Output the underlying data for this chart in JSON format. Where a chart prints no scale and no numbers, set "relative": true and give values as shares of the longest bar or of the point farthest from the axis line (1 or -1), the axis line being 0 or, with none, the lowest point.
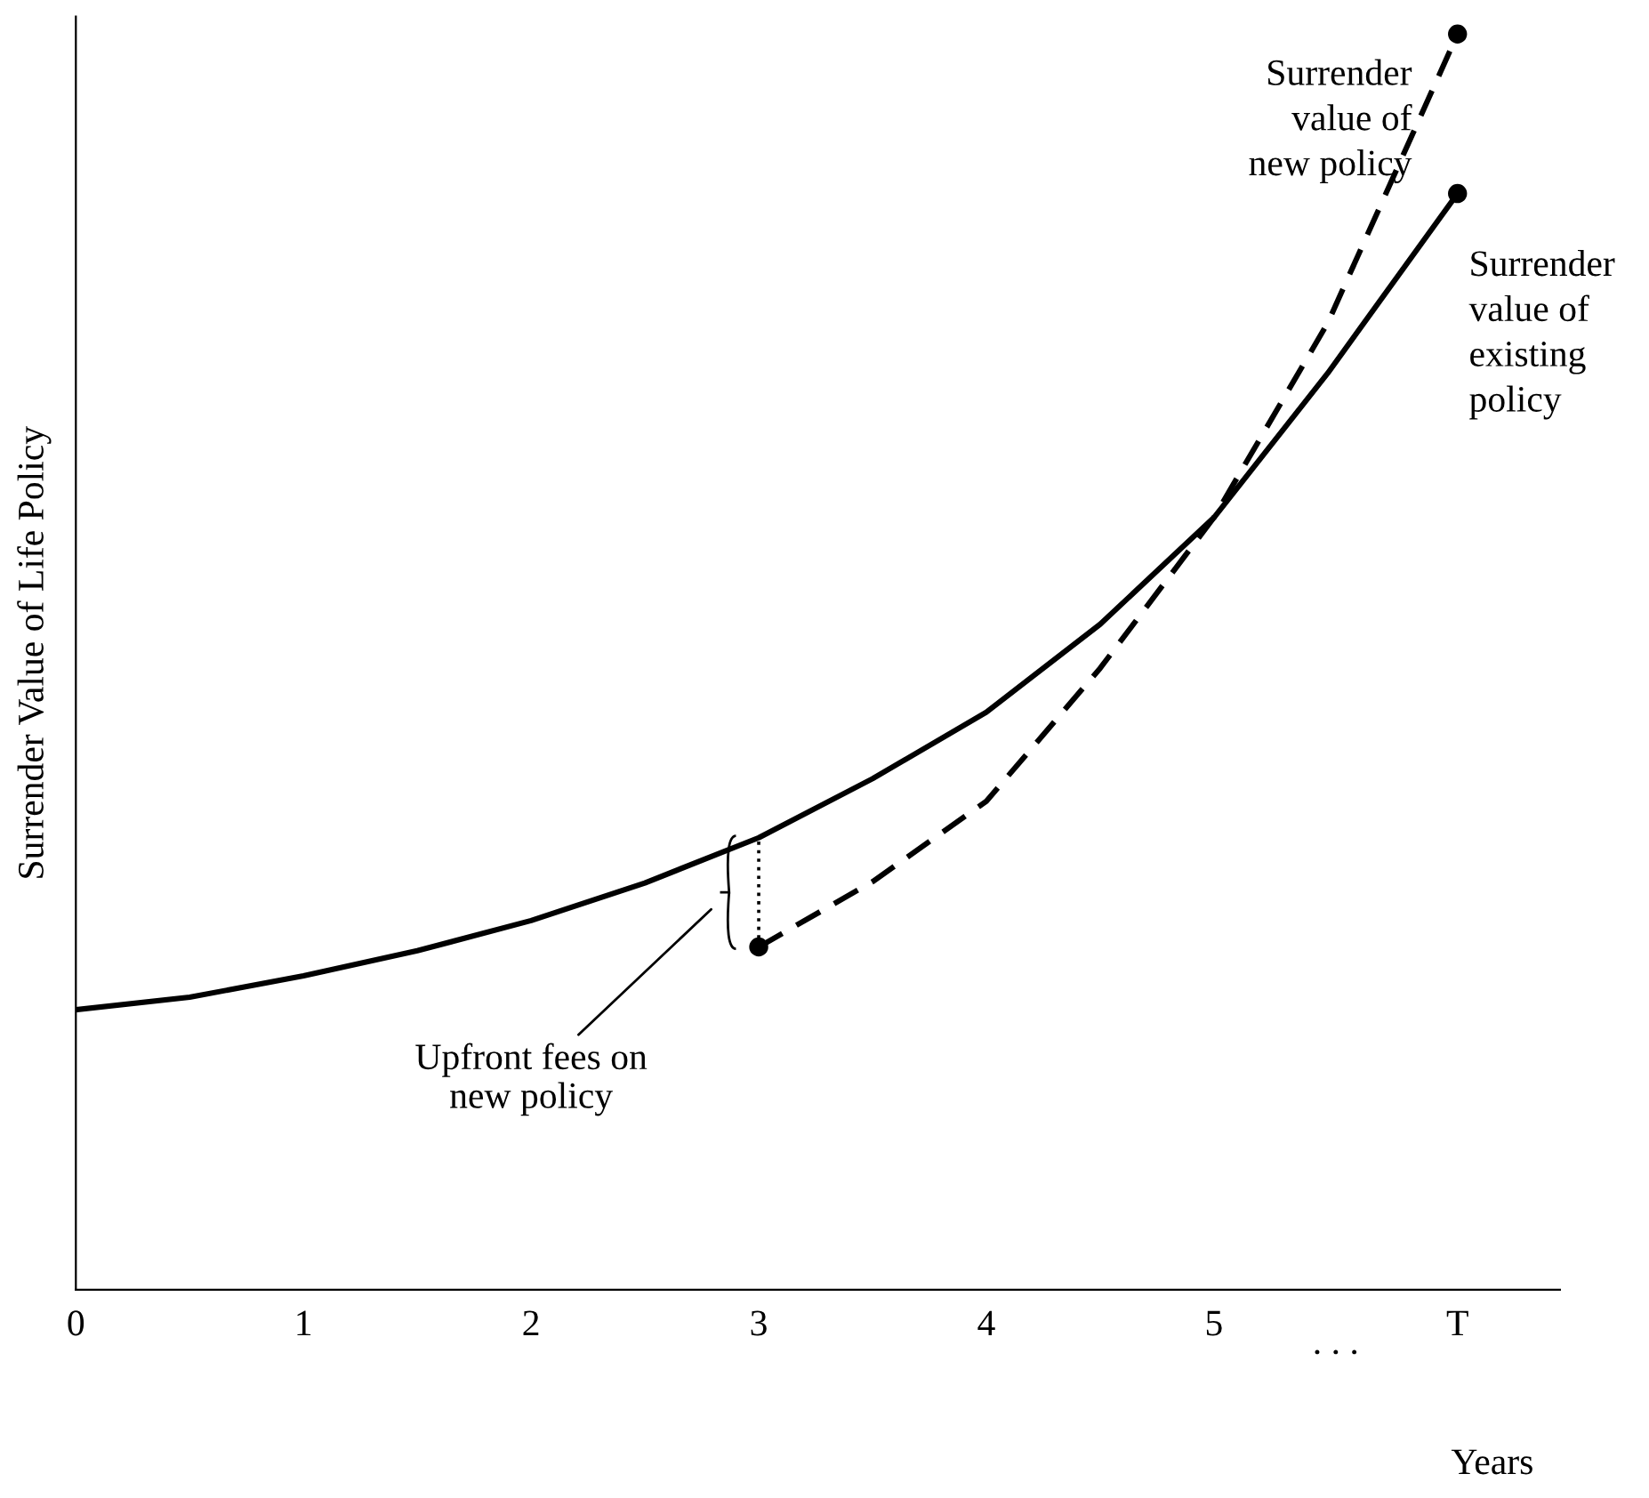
{
  "chart_data": {
    "type": "line",
    "relative": true,
    "xlabel": "Years",
    "ylabel": "Surrender Value of Life Policy",
    "xlim": [
      0,
      6.52
    ],
    "xticks": [
      0,
      1,
      2,
      3,
      4,
      5,
      {
        "value": 6.07,
        "label": "T"
      }
    ],
    "grid": false,
    "tick_labels": "x",
    "series": [
      {
        "name": "Surrender\nvalue of\nexisting\npolicy",
        "color": "#000000",
        "line_style": "solid",
        "x": [
          0,
          0.5,
          1,
          1.5,
          2,
          2.5,
          3,
          3.5,
          4,
          4.5,
          5,
          5.5,
          6.07
        ],
        "values": [
          0.223,
          0.233,
          0.25,
          0.27,
          0.294,
          0.324,
          0.36,
          0.407,
          0.46,
          0.53,
          0.615,
          0.73,
          0.873
        ]
      },
      {
        "name": "Surrender\nvalue of\nnew policy",
        "color": "#000000",
        "line_style": "dashed",
        "x": [
          3,
          3.5,
          4,
          4.5,
          5,
          5.5,
          6.07
        ],
        "values": [
          0.273,
          0.325,
          0.389,
          0.495,
          0.615,
          0.77,
          1
        ]
      },
      {
        "type": "scatter",
        "color": "#000000",
        "marker": "circle",
        "x": [
          3,
          6.07,
          6.07
        ],
        "values": [
          0.273,
          1,
          0.873
        ]
      },
      {
        "color": "#000000",
        "line_style": "dotted",
        "x": [
          3,
          3
        ],
        "values": [
          0.273,
          0.36
        ]
      }
    ],
    "annotations": [
      "Upfront fees on\nnew policy",
      ". . ."
    ]
  }
}
